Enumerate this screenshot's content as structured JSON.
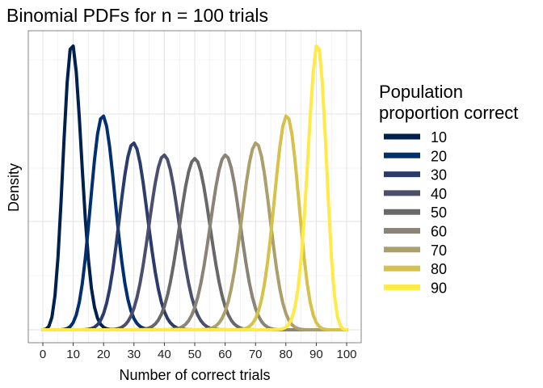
{
  "chart_data": {
    "type": "line",
    "title": "Binomial PDFs for n = 100 trials",
    "xlabel": "Number of correct trials",
    "ylabel": "Density",
    "xlim": [
      0,
      100
    ],
    "x_ticks": [
      0,
      10,
      20,
      30,
      40,
      50,
      60,
      70,
      80,
      90,
      100
    ],
    "y_ticks_labeled": false,
    "grid": true,
    "legend": {
      "title": "Population proportion correct",
      "title_lines": [
        "Population",
        "proportion correct"
      ],
      "position": "right"
    },
    "n": 100,
    "series": [
      {
        "name": "10",
        "p": 0.1,
        "color": "#00204d"
      },
      {
        "name": "20",
        "p": 0.2,
        "color": "#00306f"
      },
      {
        "name": "30",
        "p": 0.3,
        "color": "#2b3b6b"
      },
      {
        "name": "40",
        "p": 0.4,
        "color": "#4b4f6d"
      },
      {
        "name": "50",
        "p": 0.5,
        "color": "#686868"
      },
      {
        "name": "60",
        "p": 0.6,
        "color": "#8a8476"
      },
      {
        "name": "70",
        "p": 0.7,
        "color": "#ac9f6b"
      },
      {
        "name": "80",
        "p": 0.8,
        "color": "#d6c24b"
      },
      {
        "name": "90",
        "p": 0.9,
        "color": "#ffea46"
      }
    ]
  }
}
